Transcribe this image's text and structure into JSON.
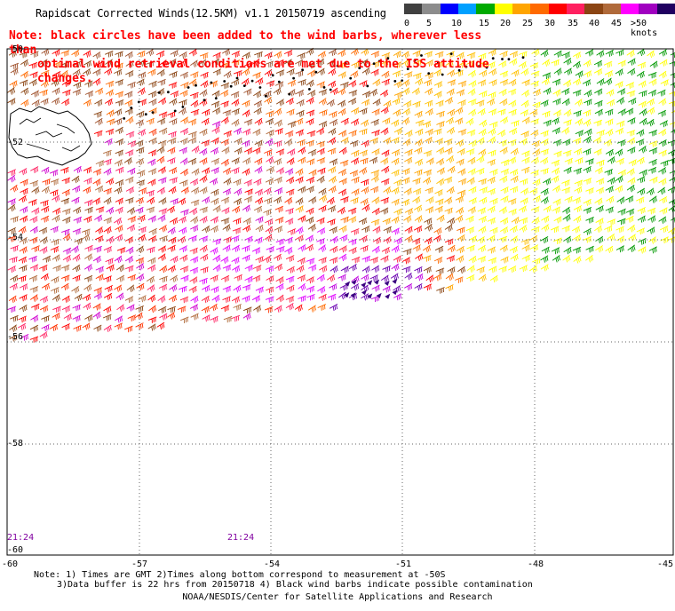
{
  "title": "Rapidscat Corrected Winds(12.5KM) v1.1 20150719 ascending",
  "note": {
    "line1": "Note: black circles have been added to the wind barbs, wherever less than",
    "line2": "optimal wind retrieval conditions are met due to the ISS attitude changes."
  },
  "legend": {
    "labels": [
      "0",
      "5",
      "10",
      "15",
      "20",
      "25",
      "30",
      "35",
      "40",
      "45",
      ">50 knots"
    ],
    "colors": [
      "#404040",
      "#8c8c8c",
      "#0000ff",
      "#00a0ff",
      "#00aa00",
      "#ffff00",
      "#ffa500",
      "#ff6a00",
      "#ff0000",
      "#ff2060",
      "#8b4513",
      "#b06a3a",
      "#ff00ff",
      "#a000c0",
      "#200060"
    ]
  },
  "axes": {
    "lat_labels": [
      "-50",
      "-52",
      "-54",
      "-56",
      "-58",
      "-60"
    ],
    "lon_labels": [
      "-60",
      "-57",
      "-54",
      "-51",
      "-48",
      "-45"
    ]
  },
  "times": [
    "21:24",
    "21:24"
  ],
  "footer": {
    "line1": "Note: 1) Times are GMT 2)Times along bottom correspond to measurement at -50S",
    "line2": "3)Data buffer is 22 hrs from 20150718 4) Black wind barbs indicate possible contamination",
    "credit": "NOAA/NESDIS/Center for Satellite Applications and Research"
  }
}
